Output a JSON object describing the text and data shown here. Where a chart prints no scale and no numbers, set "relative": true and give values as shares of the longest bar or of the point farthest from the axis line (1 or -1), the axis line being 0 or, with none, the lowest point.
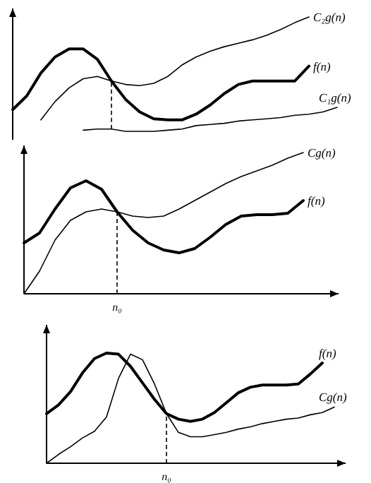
{
  "chart_data": [
    {
      "type": "line",
      "relative": true,
      "categories": [
        null,
        null,
        null,
        null,
        null,
        null,
        null,
        null,
        null,
        null,
        null,
        null,
        null,
        null,
        null,
        null,
        null,
        null,
        null,
        null,
        null,
        null,
        null,
        null
      ],
      "series": [
        {
          "name": "f(n)",
          "color": "#000000",
          "values": [
            0.19,
            0.31,
            0.51,
            0.65,
            0.72,
            0.72,
            0.63,
            0.44,
            0.28,
            0.17,
            0.11,
            0.1,
            0.1,
            0.15,
            0.23,
            0.33,
            0.41,
            0.44,
            0.44,
            0.44,
            0.44,
            0.57,
            null,
            null
          ]
        },
        {
          "name": "C₂g(n)",
          "color": "#000000",
          "values": [
            null,
            null,
            0.1,
            0.26,
            0.38,
            0.46,
            0.48,
            0.44,
            0.41,
            0.4,
            0.42,
            0.48,
            0.58,
            0.65,
            0.7,
            0.74,
            0.77,
            0.8,
            0.84,
            0.89,
            0.95,
            1,
            null,
            null
          ]
        },
        {
          "name": "C₁g(n)",
          "color": "#000000",
          "values": [
            null,
            null,
            null,
            null,
            null,
            0.01,
            0.02,
            0.02,
            0,
            0,
            0,
            0.01,
            0.02,
            0.05,
            0.06,
            0.07,
            0.09,
            0.1,
            0.11,
            0.12,
            0.14,
            0.15,
            0.17,
            0.21
          ]
        }
      ]
    },
    {
      "type": "line",
      "relative": true,
      "categories": [
        null,
        null,
        null,
        null,
        null,
        null,
        null,
        null,
        null,
        null,
        null,
        null,
        null,
        null,
        null,
        null,
        null,
        null,
        null,
        null,
        null
      ],
      "annotations": [
        "n₀"
      ],
      "series": [
        {
          "name": "f(n)",
          "color": "#000000",
          "values": [
            0.36,
            0.43,
            0.6,
            0.75,
            0.8,
            0.74,
            0.58,
            0.45,
            0.36,
            0.31,
            0.29,
            0.32,
            0.4,
            0.49,
            0.55,
            0.56,
            0.56,
            0.57,
            0.66,
            null,
            null
          ]
        },
        {
          "name": "Cg(n)",
          "color": "#000000",
          "values": [
            0,
            0.16,
            0.38,
            0.52,
            0.58,
            0.6,
            0.58,
            0.55,
            0.54,
            0.55,
            0.6,
            0.66,
            0.72,
            0.78,
            0.83,
            0.87,
            0.91,
            0.96,
            1,
            null,
            null
          ]
        }
      ]
    },
    {
      "type": "line",
      "relative": true,
      "categories": [
        null,
        null,
        null,
        null,
        null,
        null,
        null,
        null,
        null,
        null,
        null,
        null,
        null,
        null,
        null,
        null,
        null,
        null,
        null,
        null,
        null,
        null,
        null,
        null,
        null
      ],
      "annotations": [
        "n₀"
      ],
      "series": [
        {
          "name": "f(n)",
          "color": "#000000",
          "values": [
            0.45,
            0.53,
            0.65,
            0.82,
            0.95,
            1,
            0.99,
            0.88,
            0.73,
            0.58,
            0.45,
            0.4,
            0.38,
            0.4,
            0.46,
            0.55,
            0.64,
            0.69,
            0.71,
            0.71,
            0.71,
            0.72,
            0.81,
            0.91,
            null
          ]
        },
        {
          "name": "Cg(n)",
          "color": "#000000",
          "values": [
            0,
            0.08,
            0.15,
            0.23,
            0.29,
            0.42,
            0.77,
            0.99,
            0.94,
            0.72,
            0.45,
            0.28,
            0.24,
            0.24,
            0.26,
            0.28,
            0.31,
            0.33,
            0.36,
            0.38,
            0.4,
            0.41,
            0.44,
            0.46,
            0.51
          ]
        }
      ]
    }
  ]
}
